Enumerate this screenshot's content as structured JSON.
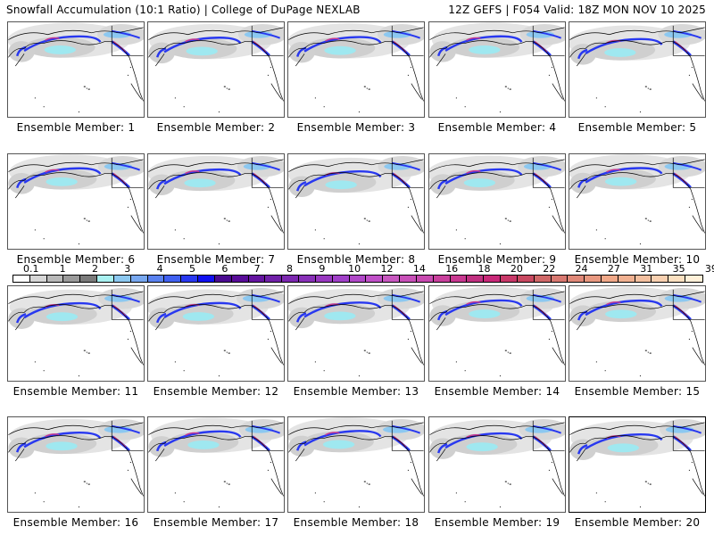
{
  "header": {
    "title_left": "Snowfall Accumulation (10:1 Ratio) | College of DuPage NEXLAB",
    "title_right": "12Z GEFS | F054 Valid: 18Z MON NOV 10 2025"
  },
  "panels": [
    {
      "label": "Ensemble Member: 1"
    },
    {
      "label": "Ensemble Member: 2"
    },
    {
      "label": "Ensemble Member: 3"
    },
    {
      "label": "Ensemble Member: 4"
    },
    {
      "label": "Ensemble Member: 5"
    },
    {
      "label": "Ensemble Member: 6"
    },
    {
      "label": "Ensemble Member: 7"
    },
    {
      "label": "Ensemble Member: 8"
    },
    {
      "label": "Ensemble Member: 9"
    },
    {
      "label": "Ensemble Member: 10"
    },
    {
      "label": "Ensemble Member: 11"
    },
    {
      "label": "Ensemble Member: 12"
    },
    {
      "label": "Ensemble Member: 13"
    },
    {
      "label": "Ensemble Member: 14"
    },
    {
      "label": "Ensemble Member: 15"
    },
    {
      "label": "Ensemble Member: 16"
    },
    {
      "label": "Ensemble Member: 17"
    },
    {
      "label": "Ensemble Member: 18"
    },
    {
      "label": "Ensemble Member: 19"
    },
    {
      "label": "Ensemble Member: 20",
      "highlighted": true
    }
  ],
  "colorbar": {
    "tick_labels": [
      "0.1",
      "1",
      "2",
      "3",
      "4",
      "5",
      "6",
      "7",
      "8",
      "9",
      "10",
      "12",
      "14",
      "16",
      "18",
      "20",
      "22",
      "24",
      "27",
      "31",
      "35",
      "39"
    ],
    "colors": [
      "#ffffff",
      "#d6d6d6",
      "#b8b8b8",
      "#9a9a9a",
      "#7a7a7a",
      "#a8f0f0",
      "#8cc8f0",
      "#78a8f0",
      "#5a82f0",
      "#4060f0",
      "#2838f0",
      "#1010f0",
      "#4a0a90",
      "#580c98",
      "#6414a0",
      "#7020a8",
      "#7c28b0",
      "#8830b8",
      "#9838c0",
      "#a040c8",
      "#b048c8",
      "#c050c8",
      "#c858c0",
      "#c850b8",
      "#c84ab0",
      "#c8409c",
      "#c83890",
      "#c03080",
      "#c82878",
      "#c83868",
      "#c84860",
      "#d06868",
      "#d87870",
      "#e08878",
      "#e89880",
      "#f0a888",
      "#f0b090",
      "#f4c0a0",
      "#f8d0b0",
      "#fce0c0",
      "#fff0d8"
    ]
  }
}
